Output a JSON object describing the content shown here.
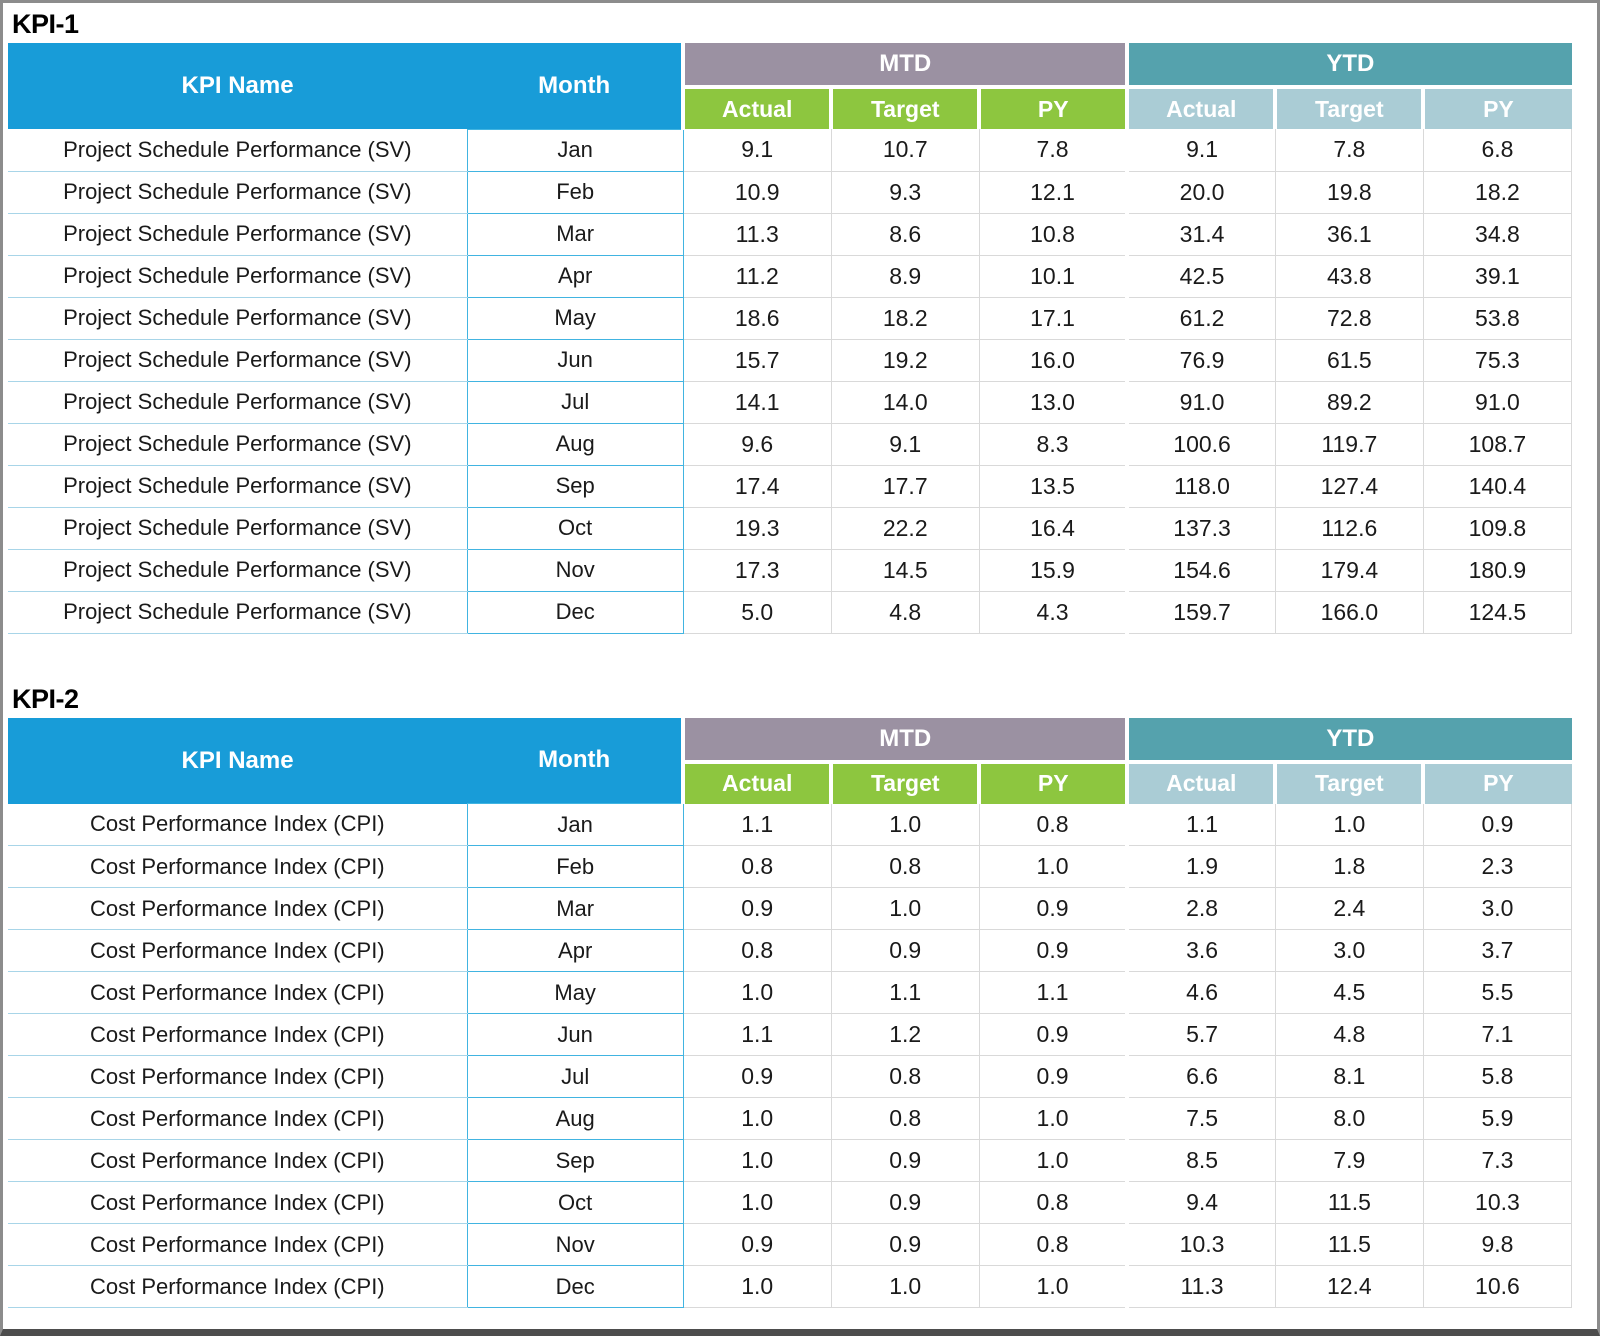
{
  "colors": {
    "header_blue": "#189CD8",
    "mtd_band": "#9B91A2",
    "ytd_band": "#55A2AD",
    "mtd_sub_green": "#8DC63F",
    "ytd_sub_blue": "#AACCD5",
    "month_border_blue": "#41B4E1",
    "name_border_blue": "#A8D5E8",
    "num_border_gray": "#D9D9D9",
    "frame_gray": "#8C8C8C",
    "frame_bottom_gray": "#4D4D4D"
  },
  "tables": [
    {
      "title": "KPI-1",
      "headers": {
        "kpi_name": "KPI Name",
        "month": "Month",
        "mtd": "MTD",
        "ytd": "YTD",
        "sub": [
          "Actual",
          "Target",
          "PY",
          "Actual",
          "Target",
          "PY"
        ]
      },
      "rows": [
        {
          "name": "Project Schedule Performance (SV)",
          "month": "Jan",
          "mtd_actual": "9.1",
          "mtd_target": "10.7",
          "mtd_py": "7.8",
          "ytd_actual": "9.1",
          "ytd_target": "7.8",
          "ytd_py": "6.8"
        },
        {
          "name": "Project Schedule Performance (SV)",
          "month": "Feb",
          "mtd_actual": "10.9",
          "mtd_target": "9.3",
          "mtd_py": "12.1",
          "ytd_actual": "20.0",
          "ytd_target": "19.8",
          "ytd_py": "18.2"
        },
        {
          "name": "Project Schedule Performance (SV)",
          "month": "Mar",
          "mtd_actual": "11.3",
          "mtd_target": "8.6",
          "mtd_py": "10.8",
          "ytd_actual": "31.4",
          "ytd_target": "36.1",
          "ytd_py": "34.8"
        },
        {
          "name": "Project Schedule Performance (SV)",
          "month": "Apr",
          "mtd_actual": "11.2",
          "mtd_target": "8.9",
          "mtd_py": "10.1",
          "ytd_actual": "42.5",
          "ytd_target": "43.8",
          "ytd_py": "39.1"
        },
        {
          "name": "Project Schedule Performance (SV)",
          "month": "May",
          "mtd_actual": "18.6",
          "mtd_target": "18.2",
          "mtd_py": "17.1",
          "ytd_actual": "61.2",
          "ytd_target": "72.8",
          "ytd_py": "53.8"
        },
        {
          "name": "Project Schedule Performance (SV)",
          "month": "Jun",
          "mtd_actual": "15.7",
          "mtd_target": "19.2",
          "mtd_py": "16.0",
          "ytd_actual": "76.9",
          "ytd_target": "61.5",
          "ytd_py": "75.3"
        },
        {
          "name": "Project Schedule Performance (SV)",
          "month": "Jul",
          "mtd_actual": "14.1",
          "mtd_target": "14.0",
          "mtd_py": "13.0",
          "ytd_actual": "91.0",
          "ytd_target": "89.2",
          "ytd_py": "91.0"
        },
        {
          "name": "Project Schedule Performance (SV)",
          "month": "Aug",
          "mtd_actual": "9.6",
          "mtd_target": "9.1",
          "mtd_py": "8.3",
          "ytd_actual": "100.6",
          "ytd_target": "119.7",
          "ytd_py": "108.7"
        },
        {
          "name": "Project Schedule Performance (SV)",
          "month": "Sep",
          "mtd_actual": "17.4",
          "mtd_target": "17.7",
          "mtd_py": "13.5",
          "ytd_actual": "118.0",
          "ytd_target": "127.4",
          "ytd_py": "140.4"
        },
        {
          "name": "Project Schedule Performance (SV)",
          "month": "Oct",
          "mtd_actual": "19.3",
          "mtd_target": "22.2",
          "mtd_py": "16.4",
          "ytd_actual": "137.3",
          "ytd_target": "112.6",
          "ytd_py": "109.8"
        },
        {
          "name": "Project Schedule Performance (SV)",
          "month": "Nov",
          "mtd_actual": "17.3",
          "mtd_target": "14.5",
          "mtd_py": "15.9",
          "ytd_actual": "154.6",
          "ytd_target": "179.4",
          "ytd_py": "180.9"
        },
        {
          "name": "Project Schedule Performance (SV)",
          "month": "Dec",
          "mtd_actual": "5.0",
          "mtd_target": "4.8",
          "mtd_py": "4.3",
          "ytd_actual": "159.7",
          "ytd_target": "166.0",
          "ytd_py": "124.5"
        }
      ]
    },
    {
      "title": "KPI-2",
      "headers": {
        "kpi_name": "KPI Name",
        "month": "Month",
        "mtd": "MTD",
        "ytd": "YTD",
        "sub": [
          "Actual",
          "Target",
          "PY",
          "Actual",
          "Target",
          "PY"
        ]
      },
      "rows": [
        {
          "name": "Cost Performance Index (CPI)",
          "month": "Jan",
          "mtd_actual": "1.1",
          "mtd_target": "1.0",
          "mtd_py": "0.8",
          "ytd_actual": "1.1",
          "ytd_target": "1.0",
          "ytd_py": "0.9"
        },
        {
          "name": "Cost Performance Index (CPI)",
          "month": "Feb",
          "mtd_actual": "0.8",
          "mtd_target": "0.8",
          "mtd_py": "1.0",
          "ytd_actual": "1.9",
          "ytd_target": "1.8",
          "ytd_py": "2.3"
        },
        {
          "name": "Cost Performance Index (CPI)",
          "month": "Mar",
          "mtd_actual": "0.9",
          "mtd_target": "1.0",
          "mtd_py": "0.9",
          "ytd_actual": "2.8",
          "ytd_target": "2.4",
          "ytd_py": "3.0"
        },
        {
          "name": "Cost Performance Index (CPI)",
          "month": "Apr",
          "mtd_actual": "0.8",
          "mtd_target": "0.9",
          "mtd_py": "0.9",
          "ytd_actual": "3.6",
          "ytd_target": "3.0",
          "ytd_py": "3.7"
        },
        {
          "name": "Cost Performance Index (CPI)",
          "month": "May",
          "mtd_actual": "1.0",
          "mtd_target": "1.1",
          "mtd_py": "1.1",
          "ytd_actual": "4.6",
          "ytd_target": "4.5",
          "ytd_py": "5.5"
        },
        {
          "name": "Cost Performance Index (CPI)",
          "month": "Jun",
          "mtd_actual": "1.1",
          "mtd_target": "1.2",
          "mtd_py": "0.9",
          "ytd_actual": "5.7",
          "ytd_target": "4.8",
          "ytd_py": "7.1"
        },
        {
          "name": "Cost Performance Index (CPI)",
          "month": "Jul",
          "mtd_actual": "0.9",
          "mtd_target": "0.8",
          "mtd_py": "0.9",
          "ytd_actual": "6.6",
          "ytd_target": "8.1",
          "ytd_py": "5.8"
        },
        {
          "name": "Cost Performance Index (CPI)",
          "month": "Aug",
          "mtd_actual": "1.0",
          "mtd_target": "0.8",
          "mtd_py": "1.0",
          "ytd_actual": "7.5",
          "ytd_target": "8.0",
          "ytd_py": "5.9"
        },
        {
          "name": "Cost Performance Index (CPI)",
          "month": "Sep",
          "mtd_actual": "1.0",
          "mtd_target": "0.9",
          "mtd_py": "1.0",
          "ytd_actual": "8.5",
          "ytd_target": "7.9",
          "ytd_py": "7.3"
        },
        {
          "name": "Cost Performance Index (CPI)",
          "month": "Oct",
          "mtd_actual": "1.0",
          "mtd_target": "0.9",
          "mtd_py": "0.8",
          "ytd_actual": "9.4",
          "ytd_target": "11.5",
          "ytd_py": "10.3"
        },
        {
          "name": "Cost Performance Index (CPI)",
          "month": "Nov",
          "mtd_actual": "0.9",
          "mtd_target": "0.9",
          "mtd_py": "0.8",
          "ytd_actual": "10.3",
          "ytd_target": "11.5",
          "ytd_py": "9.8"
        },
        {
          "name": "Cost Performance Index (CPI)",
          "month": "Dec",
          "mtd_actual": "1.0",
          "mtd_target": "1.0",
          "mtd_py": "1.0",
          "ytd_actual": "11.3",
          "ytd_target": "12.4",
          "ytd_py": "10.6"
        }
      ]
    }
  ]
}
